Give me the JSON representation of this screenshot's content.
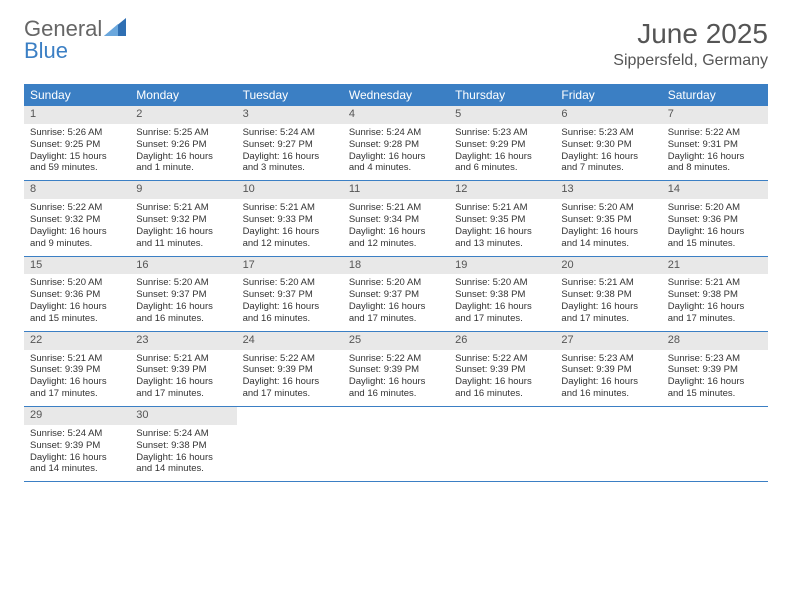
{
  "colors": {
    "header_blue": "#3b7fc4",
    "daynum_bg": "#e8e8e8",
    "text": "#333333",
    "muted": "#555555",
    "white": "#ffffff"
  },
  "logo": {
    "text_general": "General",
    "text_blue": "Blue"
  },
  "header": {
    "title": "June 2025",
    "location": "Sippersfeld, Germany"
  },
  "days_of_week": [
    "Sunday",
    "Monday",
    "Tuesday",
    "Wednesday",
    "Thursday",
    "Friday",
    "Saturday"
  ],
  "days": [
    {
      "n": "1",
      "sr": "Sunrise: 5:26 AM",
      "ss": "Sunset: 9:25 PM",
      "dl": "Daylight: 15 hours and 59 minutes."
    },
    {
      "n": "2",
      "sr": "Sunrise: 5:25 AM",
      "ss": "Sunset: 9:26 PM",
      "dl": "Daylight: 16 hours and 1 minute."
    },
    {
      "n": "3",
      "sr": "Sunrise: 5:24 AM",
      "ss": "Sunset: 9:27 PM",
      "dl": "Daylight: 16 hours and 3 minutes."
    },
    {
      "n": "4",
      "sr": "Sunrise: 5:24 AM",
      "ss": "Sunset: 9:28 PM",
      "dl": "Daylight: 16 hours and 4 minutes."
    },
    {
      "n": "5",
      "sr": "Sunrise: 5:23 AM",
      "ss": "Sunset: 9:29 PM",
      "dl": "Daylight: 16 hours and 6 minutes."
    },
    {
      "n": "6",
      "sr": "Sunrise: 5:23 AM",
      "ss": "Sunset: 9:30 PM",
      "dl": "Daylight: 16 hours and 7 minutes."
    },
    {
      "n": "7",
      "sr": "Sunrise: 5:22 AM",
      "ss": "Sunset: 9:31 PM",
      "dl": "Daylight: 16 hours and 8 minutes."
    },
    {
      "n": "8",
      "sr": "Sunrise: 5:22 AM",
      "ss": "Sunset: 9:32 PM",
      "dl": "Daylight: 16 hours and 9 minutes."
    },
    {
      "n": "9",
      "sr": "Sunrise: 5:21 AM",
      "ss": "Sunset: 9:32 PM",
      "dl": "Daylight: 16 hours and 11 minutes."
    },
    {
      "n": "10",
      "sr": "Sunrise: 5:21 AM",
      "ss": "Sunset: 9:33 PM",
      "dl": "Daylight: 16 hours and 12 minutes."
    },
    {
      "n": "11",
      "sr": "Sunrise: 5:21 AM",
      "ss": "Sunset: 9:34 PM",
      "dl": "Daylight: 16 hours and 12 minutes."
    },
    {
      "n": "12",
      "sr": "Sunrise: 5:21 AM",
      "ss": "Sunset: 9:35 PM",
      "dl": "Daylight: 16 hours and 13 minutes."
    },
    {
      "n": "13",
      "sr": "Sunrise: 5:20 AM",
      "ss": "Sunset: 9:35 PM",
      "dl": "Daylight: 16 hours and 14 minutes."
    },
    {
      "n": "14",
      "sr": "Sunrise: 5:20 AM",
      "ss": "Sunset: 9:36 PM",
      "dl": "Daylight: 16 hours and 15 minutes."
    },
    {
      "n": "15",
      "sr": "Sunrise: 5:20 AM",
      "ss": "Sunset: 9:36 PM",
      "dl": "Daylight: 16 hours and 15 minutes."
    },
    {
      "n": "16",
      "sr": "Sunrise: 5:20 AM",
      "ss": "Sunset: 9:37 PM",
      "dl": "Daylight: 16 hours and 16 minutes."
    },
    {
      "n": "17",
      "sr": "Sunrise: 5:20 AM",
      "ss": "Sunset: 9:37 PM",
      "dl": "Daylight: 16 hours and 16 minutes."
    },
    {
      "n": "18",
      "sr": "Sunrise: 5:20 AM",
      "ss": "Sunset: 9:37 PM",
      "dl": "Daylight: 16 hours and 17 minutes."
    },
    {
      "n": "19",
      "sr": "Sunrise: 5:20 AM",
      "ss": "Sunset: 9:38 PM",
      "dl": "Daylight: 16 hours and 17 minutes."
    },
    {
      "n": "20",
      "sr": "Sunrise: 5:21 AM",
      "ss": "Sunset: 9:38 PM",
      "dl": "Daylight: 16 hours and 17 minutes."
    },
    {
      "n": "21",
      "sr": "Sunrise: 5:21 AM",
      "ss": "Sunset: 9:38 PM",
      "dl": "Daylight: 16 hours and 17 minutes."
    },
    {
      "n": "22",
      "sr": "Sunrise: 5:21 AM",
      "ss": "Sunset: 9:39 PM",
      "dl": "Daylight: 16 hours and 17 minutes."
    },
    {
      "n": "23",
      "sr": "Sunrise: 5:21 AM",
      "ss": "Sunset: 9:39 PM",
      "dl": "Daylight: 16 hours and 17 minutes."
    },
    {
      "n": "24",
      "sr": "Sunrise: 5:22 AM",
      "ss": "Sunset: 9:39 PM",
      "dl": "Daylight: 16 hours and 17 minutes."
    },
    {
      "n": "25",
      "sr": "Sunrise: 5:22 AM",
      "ss": "Sunset: 9:39 PM",
      "dl": "Daylight: 16 hours and 16 minutes."
    },
    {
      "n": "26",
      "sr": "Sunrise: 5:22 AM",
      "ss": "Sunset: 9:39 PM",
      "dl": "Daylight: 16 hours and 16 minutes."
    },
    {
      "n": "27",
      "sr": "Sunrise: 5:23 AM",
      "ss": "Sunset: 9:39 PM",
      "dl": "Daylight: 16 hours and 16 minutes."
    },
    {
      "n": "28",
      "sr": "Sunrise: 5:23 AM",
      "ss": "Sunset: 9:39 PM",
      "dl": "Daylight: 16 hours and 15 minutes."
    },
    {
      "n": "29",
      "sr": "Sunrise: 5:24 AM",
      "ss": "Sunset: 9:39 PM",
      "dl": "Daylight: 16 hours and 14 minutes."
    },
    {
      "n": "30",
      "sr": "Sunrise: 5:24 AM",
      "ss": "Sunset: 9:38 PM",
      "dl": "Daylight: 16 hours and 14 minutes."
    }
  ]
}
